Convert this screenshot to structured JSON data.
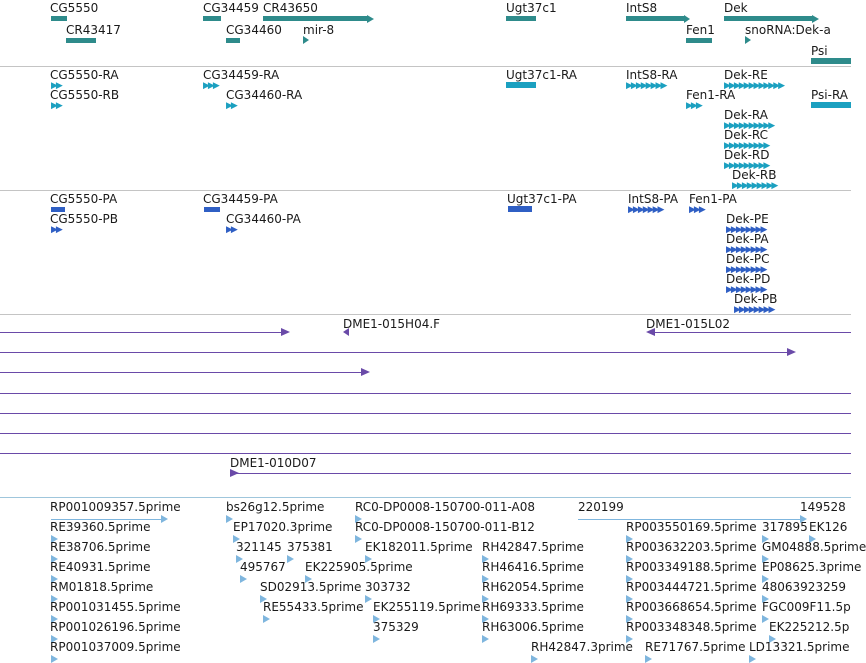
{
  "colors": {
    "gene": "#2e8b8b",
    "mrna": "#1ba0c0",
    "protein": "#2f5fc4",
    "clone": "#6a4aa8",
    "est": "#7fb6de"
  },
  "genes": {
    "cg5550": "CG5550",
    "cr43417": "CR43417",
    "cg34459": "CG34459",
    "cr43650": "CR43650",
    "cg34460": "CG34460",
    "mir8": "mir-8",
    "ugt37c1": "Ugt37c1",
    "ints8": "IntS8",
    "fen1": "Fen1",
    "dek": "Dek",
    "snorna": "snoRNA:Dek-a",
    "psi": "Psi"
  },
  "transcripts": {
    "cg5550_ra": "CG5550-RA",
    "cg5550_rb": "CG5550-RB",
    "cg34459_ra": "CG34459-RA",
    "cg34460_ra": "CG34460-RA",
    "ugt37c1_ra": "Ugt37c1-RA",
    "ints8_ra": "IntS8-RA",
    "fen1_ra": "Fen1-RA",
    "dek_re": "Dek-RE",
    "psi_ra": "Psi-RA",
    "dek_ra": "Dek-RA",
    "dek_rc": "Dek-RC",
    "dek_rd": "Dek-RD",
    "dek_rb": "Dek-RB"
  },
  "proteins": {
    "cg5550_pa": "CG5550-PA",
    "cg5550_pb": "CG5550-PB",
    "cg34459_pa": "CG34459-PA",
    "cg34460_pa": "CG34460-PA",
    "ugt37c1_pa": "Ugt37c1-PA",
    "ints8_pa": "IntS8-PA",
    "fen1_pa": "Fen1-PA",
    "dek_pe": "Dek-PE",
    "dek_pa": "Dek-PA",
    "dek_pc": "Dek-PC",
    "dek_pd": "Dek-PD",
    "dek_pb": "Dek-PB"
  },
  "clones": {
    "dme1_015h04": "DME1-015H04.F",
    "dme1_015l02": "DME1-015L02",
    "dme1_010d07": "DME1-010D07"
  },
  "ests": {
    "c1": [
      "RP001009357.5prime",
      "RE39360.5prime",
      "RE38706.5prime",
      "RE40931.5prime",
      "RM01818.5prime",
      "RP001031455.5prime",
      "RP001026196.5prime",
      "RP001037009.5prime"
    ],
    "bs26g12": "bs26g12.5prime",
    "ep17020": "EP17020.3prime",
    "e321145": "321145",
    "e375381": "375381",
    "e495767": "495767",
    "ek225905": "EK225905.5prime",
    "sd02913": "SD02913.5prime",
    "e303732": "303732",
    "re55433": "RE55433.5prime",
    "ek255119": "EK255119.5prime",
    "e375329": "375329",
    "rc0_a08": "RC0-DP0008-150700-011-A08",
    "rc0_b12": "RC0-DP0008-150700-011-B12",
    "ek182011": "EK182011.5prime",
    "rh42847_5": "RH42847.5prime",
    "rh46416": "RH46416.5prime",
    "rh62054": "RH62054.5prime",
    "rh69333": "RH69333.5prime",
    "rh63006": "RH63006.5prime",
    "rh42847_3": "RH42847.3prime",
    "e220199": "220199",
    "rp003550169": "RP003550169.5prime",
    "rp003632203": "RP003632203.5prime",
    "rp003349188": "RP003349188.5prime",
    "rp003444721": "RP003444721.5prime",
    "rp003668654": "RP003668654.5prime",
    "rp003348348": "RP003348348.5prime",
    "re71767": "RE71767.5prime",
    "e149528": "149528",
    "e317895": "317895",
    "ek126": "EK126",
    "gm04888": "GM04888.5prime",
    "ep08625": "EP08625.3prime",
    "e48063923259": "48063923259",
    "fgc009f11": "FGC009F11.5p",
    "ek225212": "EK225212.5p",
    "ld13321": "LD13321.5prime"
  }
}
